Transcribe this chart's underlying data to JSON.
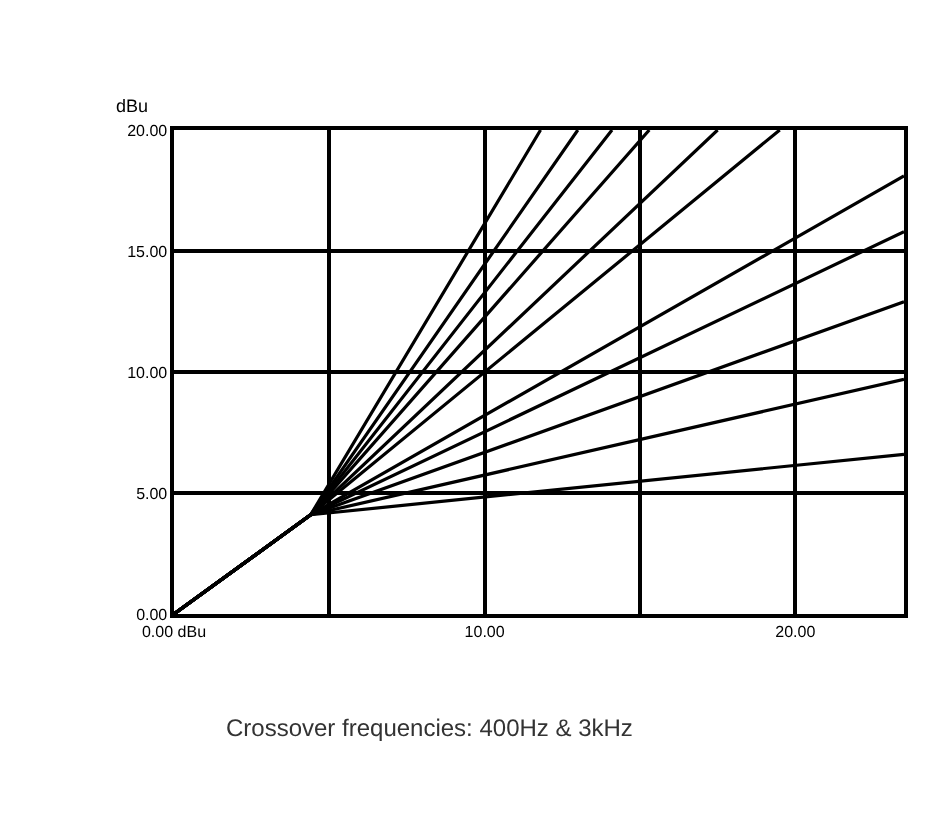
{
  "chart_data": {
    "type": "line",
    "ylabel": "dBu",
    "annotations": [
      "Crossover frequencies: 400Hz & 3kHz"
    ],
    "series": [
      {
        "color": "#000000",
        "x": [
          0,
          4.4,
          11.8
        ],
        "values": [
          0,
          4.1,
          20
        ]
      },
      {
        "color": "#000000",
        "x": [
          0,
          4.4,
          13
        ],
        "values": [
          0,
          4.1,
          20
        ]
      },
      {
        "color": "#000000",
        "x": [
          0,
          4.4,
          14.1
        ],
        "values": [
          0,
          4.1,
          20
        ]
      },
      {
        "color": "#000000",
        "x": [
          0,
          4.4,
          15.3
        ],
        "values": [
          0,
          4.1,
          20
        ]
      },
      {
        "color": "#000000",
        "x": [
          0,
          4.4,
          17.5
        ],
        "values": [
          0,
          4.1,
          20
        ]
      },
      {
        "color": "#000000",
        "x": [
          0,
          4.4,
          19.5
        ],
        "values": [
          0,
          4.1,
          20
        ]
      },
      {
        "color": "#000000",
        "x": [
          0,
          4.4,
          23.5
        ],
        "values": [
          0,
          4.1,
          18.1
        ]
      },
      {
        "color": "#000000",
        "x": [
          0,
          4.4,
          23.5
        ],
        "values": [
          0,
          4.1,
          15.8
        ]
      },
      {
        "color": "#000000",
        "x": [
          0,
          4.4,
          23.5
        ],
        "values": [
          0,
          4.1,
          12.9
        ]
      },
      {
        "color": "#000000",
        "x": [
          0,
          4.4,
          23.5
        ],
        "values": [
          0,
          4.1,
          9.7
        ]
      },
      {
        "color": "#000000",
        "x": [
          0,
          4.4,
          23.5
        ],
        "values": [
          0,
          4.1,
          6.6
        ]
      }
    ],
    "xlim": [
      0,
      23.5
    ],
    "ylim": [
      0,
      20
    ],
    "xticks": [
      {
        "value": 0,
        "label": "0.00 dBu"
      },
      {
        "value": 5,
        "label": null
      },
      {
        "value": 10,
        "label": "10.00"
      },
      {
        "value": 15,
        "label": null
      },
      {
        "value": 20,
        "label": "20.00"
      }
    ],
    "yticks": [
      {
        "value": 0,
        "label": "0.00"
      },
      {
        "value": 5,
        "label": "5.00"
      },
      {
        "value": 10,
        "label": "10.00"
      },
      {
        "value": 15,
        "label": "15.00"
      },
      {
        "value": 20,
        "label": "20.00"
      }
    ],
    "grid": true,
    "marker": "none",
    "line_style": "solid"
  }
}
